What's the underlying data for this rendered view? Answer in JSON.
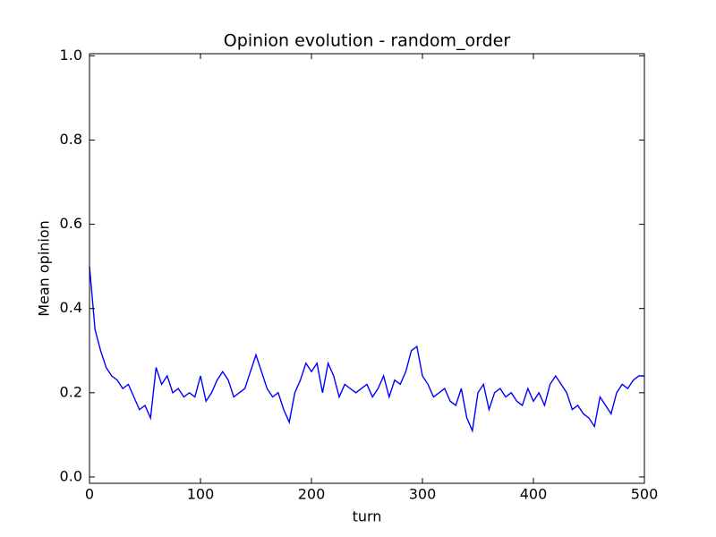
{
  "chart_data": {
    "type": "line",
    "title": "Opinion evolution - random_order",
    "x_label": "turn",
    "y_label": "Mean opinion",
    "xlim": [
      0,
      500
    ],
    "ylim": [
      -0.015,
      1.005
    ],
    "xticks": [
      0,
      100,
      200,
      300,
      400,
      500
    ],
    "yticks": [
      {
        "value": 0,
        "label": "0.0"
      },
      0.2,
      0.4,
      0.6,
      0.8,
      {
        "value": 1,
        "label": "1.0"
      }
    ],
    "x": [
      0,
      5,
      10,
      15,
      20,
      25,
      30,
      35,
      40,
      45,
      50,
      55,
      60,
      65,
      70,
      75,
      80,
      85,
      90,
      95,
      100,
      105,
      110,
      115,
      120,
      125,
      130,
      135,
      140,
      145,
      150,
      155,
      160,
      165,
      170,
      175,
      180,
      185,
      190,
      195,
      200,
      205,
      210,
      215,
      220,
      225,
      230,
      235,
      240,
      245,
      250,
      255,
      260,
      265,
      270,
      275,
      280,
      285,
      290,
      295,
      300,
      305,
      310,
      315,
      320,
      325,
      330,
      335,
      340,
      345,
      350,
      355,
      360,
      365,
      370,
      375,
      380,
      385,
      390,
      395,
      400,
      405,
      410,
      415,
      420,
      425,
      430,
      435,
      440,
      445,
      450,
      455,
      460,
      465,
      470,
      475,
      480,
      485,
      490,
      495,
      500
    ],
    "series": [
      {
        "color": "#0000ff",
        "values": [
          0.5,
          0.35,
          0.3,
          0.26,
          0.24,
          0.23,
          0.21,
          0.22,
          0.19,
          0.16,
          0.17,
          0.14,
          0.26,
          0.22,
          0.24,
          0.2,
          0.21,
          0.19,
          0.2,
          0.19,
          0.24,
          0.18,
          0.2,
          0.23,
          0.25,
          0.23,
          0.19,
          0.2,
          0.21,
          0.25,
          0.29,
          0.25,
          0.21,
          0.19,
          0.2,
          0.16,
          0.13,
          0.2,
          0.23,
          0.27,
          0.25,
          0.27,
          0.2,
          0.27,
          0.24,
          0.19,
          0.22,
          0.21,
          0.2,
          0.21,
          0.22,
          0.19,
          0.21,
          0.24,
          0.19,
          0.23,
          0.22,
          0.25,
          0.3,
          0.31,
          0.24,
          0.22,
          0.19,
          0.2,
          0.21,
          0.18,
          0.17,
          0.21,
          0.14,
          0.11,
          0.2,
          0.22,
          0.16,
          0.2,
          0.21,
          0.19,
          0.2,
          0.18,
          0.17,
          0.21,
          0.18,
          0.2,
          0.17,
          0.22,
          0.24,
          0.22,
          0.2,
          0.16,
          0.17,
          0.15,
          0.14,
          0.12,
          0.19,
          0.17,
          0.15,
          0.2,
          0.22,
          0.21,
          0.23,
          0.24,
          0.24
        ]
      }
    ]
  }
}
